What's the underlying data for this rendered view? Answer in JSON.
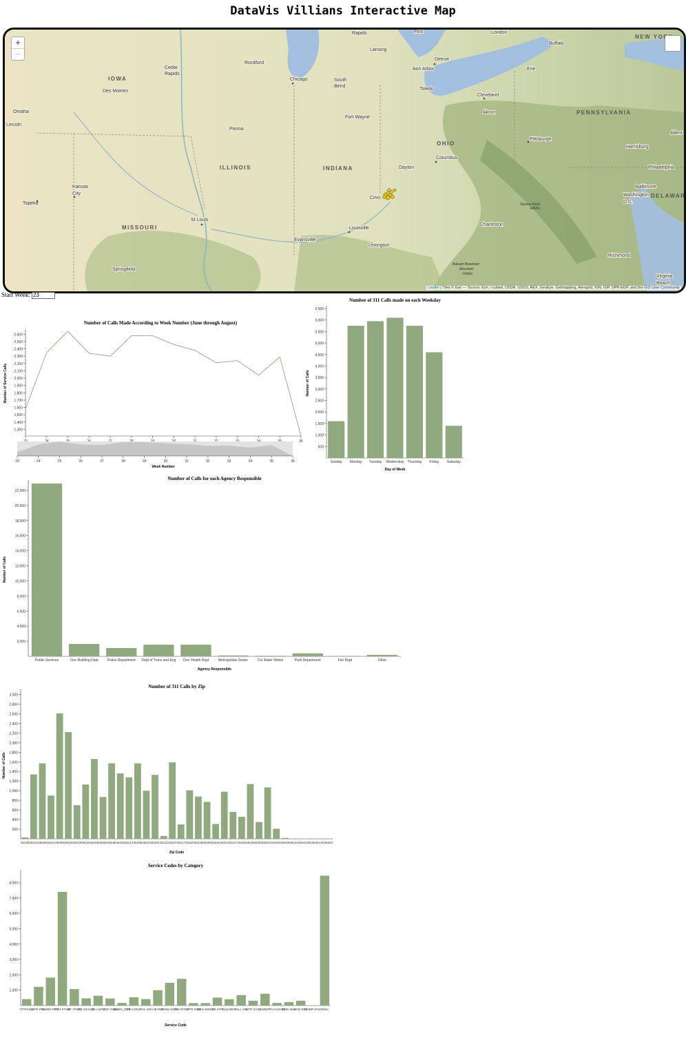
{
  "page": {
    "title": "DataVis Villians Interactive Map"
  },
  "map": {
    "zoom_in": "+",
    "zoom_out": "−",
    "attribution_link": "Leaflet",
    "attribution_text": " | Tiles © Esri — Source: Esri, i-cubed, USDA, USGS, AEX, GeoEye, Getmapping, Aerogrid, IGN, IGP, UPR-EGP, and the GIS User Community",
    "states": [
      "IOWA",
      "ILLINOIS",
      "INDIANA",
      "OHIO",
      "MISSOURI",
      "PENNSYLVANIA",
      "NEW YORK",
      "DELAWARE"
    ],
    "cities": [
      "Rapids",
      "Lansing",
      "Flint",
      "London",
      "Buffalo",
      "Cedar Rapids",
      "Rockford",
      "Detroit",
      "Ann Arbor",
      "Erie",
      "Chicago",
      "South Bend",
      "Toledo",
      "Cleveland",
      "Des Moines",
      "Omaha",
      "Lincoln",
      "Fort Wayne",
      "Akron",
      "Peoria",
      "Pittsburgh",
      "Allent",
      "Harrisburg",
      "Columbus",
      "Dayton",
      "Philadelphia",
      "Kansas City",
      "Cinci",
      "Baltimore",
      "Washington D.C.",
      "Topeka",
      "St Louis",
      "Louisville",
      "Charleston",
      "Evansville",
      "Lexington",
      "Richmond",
      "Springfield",
      "Virginia Beach"
    ],
    "peaks": [
      "Spruce Knob 1482m",
      "Balsam Beartown Mountain 1436m"
    ],
    "accent_water": "#a3bfe0",
    "marker_color": "#e6c229"
  },
  "controls": {
    "start_week_label": "Start Week:",
    "start_week_value": "23"
  },
  "charts": {
    "week": {
      "type": "line",
      "title": "Number of Calls Made According to Week Number (June through August)",
      "xlabel": "Week Number",
      "ylabel": "Number of Service Calls",
      "x": [
        23,
        24,
        25,
        26,
        27,
        28,
        29,
        30,
        31,
        32,
        33,
        34,
        35,
        36
      ],
      "values": [
        1580,
        2350,
        2640,
        2340,
        2300,
        2580,
        2580,
        2460,
        2380,
        2210,
        2240,
        2040,
        2290,
        1210
      ],
      "yticks": [
        1300,
        1400,
        1500,
        1600,
        1700,
        1800,
        1900,
        2000,
        2100,
        2200,
        2300,
        2400,
        2500,
        2600
      ],
      "ytick_labels": [
        "1,300",
        "1,400",
        "1,500",
        "1,600",
        "1,700",
        "1,800",
        "1,900",
        "2,000",
        "2,100",
        "2,200",
        "2,300",
        "2,400",
        "2,500",
        "2,600"
      ],
      "ylim": [
        1210,
        2650
      ],
      "color": "#91a97f"
    },
    "weekday": {
      "type": "bar",
      "title": "Number of 311 Calls made on each Weekday",
      "xlabel": "Day of Week",
      "ylabel": "Number of Calls",
      "categories": [
        "Sunday",
        "Monday",
        "Tuesday",
        "Wednesday",
        "Thursday",
        "Friday",
        "Saturday"
      ],
      "values": [
        1600,
        5750,
        5950,
        6100,
        5750,
        4600,
        1400
      ],
      "yticks": [
        500,
        1000,
        1500,
        2000,
        2500,
        3000,
        3500,
        4000,
        4500,
        5000,
        5500,
        6000,
        6500
      ],
      "ytick_labels": [
        "500",
        "1,000",
        "1,500",
        "2,000",
        "2,500",
        "3,000",
        "3,500",
        "4,000",
        "4,500",
        "5,000",
        "5,500",
        "6,000",
        "6,500"
      ],
      "ylim": [
        0,
        6500
      ],
      "color": "#91a97f"
    },
    "agency": {
      "type": "bar",
      "title": "Number of Calls for each Agency Responsible",
      "xlabel": "Agency Responsible",
      "ylabel": "Number of Calls",
      "categories": [
        "Public Services",
        "Cinc Building Dept",
        "Police Department",
        "Dept of Trans and Eng",
        "Cinc Health Dept",
        "Metropolitan Sewer",
        "Cin Water Works",
        "Park Department",
        "Fire Dept",
        "Other"
      ],
      "values": [
        22900,
        1650,
        1100,
        1550,
        1550,
        120,
        80,
        400,
        60,
        200
      ],
      "yticks": [
        2000,
        4000,
        6000,
        8000,
        10000,
        12000,
        14000,
        16000,
        18000,
        20000,
        22000
      ],
      "ytick_labels": [
        "2,000",
        "4,000",
        "6,000",
        "8,000",
        "10,000",
        "12,000",
        "14,000",
        "16,000",
        "18,000",
        "20,000",
        "22,000"
      ],
      "ylim": [
        0,
        23000
      ],
      "color": "#91a97f"
    },
    "zip": {
      "type": "bar",
      "title": "Number of 311 Calls by Zip",
      "xlabel": "Zip Code",
      "ylabel": "Number of Calls",
      "categories": [
        "45226",
        "45224",
        "45208",
        "45214",
        "45209",
        "45219",
        "45229",
        "45225",
        "45218",
        "45205",
        "45238",
        "45232",
        "45214",
        "45206",
        "45223",
        "45220",
        "45211",
        "45237",
        "45217",
        "45220",
        "45228",
        "45208",
        "45216",
        "45213",
        "45227",
        "45230",
        "45239",
        "45203",
        "45233",
        "45204",
        "45209",
        "45234",
        "45241",
        "45236",
        "45140",
        "45252"
      ],
      "values": [
        30,
        1340,
        1570,
        900,
        2610,
        2220,
        700,
        1130,
        1660,
        870,
        1570,
        1360,
        1280,
        1570,
        1000,
        1330,
        60,
        1590,
        300,
        1010,
        880,
        770,
        310,
        980,
        560,
        460,
        1140,
        350,
        1070,
        210,
        20,
        5,
        5,
        5,
        5,
        5
      ],
      "yticks": [
        200,
        400,
        600,
        800,
        1000,
        1200,
        1400,
        1600,
        1800,
        2000,
        2200,
        2400,
        2600,
        2800,
        3000
      ],
      "ytick_labels": [
        "200",
        "400",
        "600",
        "800",
        "1,000",
        "1,200",
        "1,400",
        "1,600",
        "1,800",
        "2,000",
        "2,200",
        "2,400",
        "2,600",
        "2,800",
        "3,000"
      ],
      "ylim": [
        0,
        3050
      ],
      "color": "#91a97f"
    },
    "service": {
      "type": "bar",
      "title": "Service Codes by Category",
      "xlabel": "Service Code",
      "ylabel": "",
      "categories": [
        "\"STRSIGN",
        "LITR-PRV",
        "DUMP-PRV",
        "PTH-PTHS",
        "RF-TRSH",
        "RD-OCCUP",
        "LD-ASPH",
        "YDP-OWN",
        "BURN_DEB",
        "FP-CONC",
        "PVL-SIG",
        "HB-RBI",
        "ROW-SIGN",
        "SW-STRIP",
        "LITR-PUB",
        "GRS-WEED",
        "TR-STR",
        "BLD-REM",
        "TALL-GR",
        "LITR-COM",
        "SWEEP",
        "TH-CLEAN",
        "SIDE-WLK",
        "HYD-REP",
        "DUMP-PVS",
        "Other"
      ],
      "values": [
        420,
        1220,
        1820,
        7400,
        1070,
        470,
        640,
        460,
        170,
        540,
        420,
        1000,
        1480,
        1740,
        160,
        160,
        520,
        410,
        680,
        310,
        770,
        170,
        230,
        310,
        20,
        8450
      ],
      "yticks": [
        1000,
        2000,
        3000,
        4000,
        5000,
        6000,
        7000,
        8000
      ],
      "ytick_labels": [
        "1,000",
        "2,000",
        "3,000",
        "4,000",
        "5,000",
        "6,000",
        "7,000",
        "8,000"
      ],
      "ylim": [
        0,
        8650
      ],
      "color": "#91a97f"
    }
  }
}
